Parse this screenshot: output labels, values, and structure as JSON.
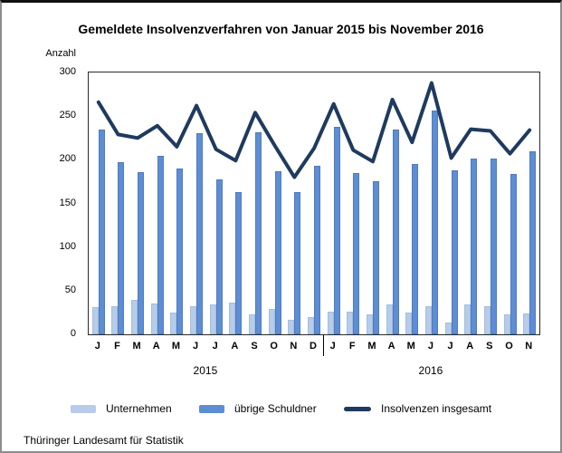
{
  "title": "Gemeldete Insolvenzverfahren von Januar 2015 bis November 2016",
  "y_axis_title": "Anzahl",
  "footer": "Thüringer Landesamt für Statistik",
  "colors": {
    "unternehmen_bar": "#b6cce8",
    "unternehmen_border": "#a5bedd",
    "uebrige_bar": "#5f8dd3",
    "uebrige_border": "#4d7cc0",
    "line": "#1f3a5f",
    "axis": "#2b2b2b"
  },
  "legend": [
    {
      "label": "Unternehmen",
      "swatch": "bar",
      "color": "#b6cce8"
    },
    {
      "label": "übrige Schuldner",
      "swatch": "bar",
      "color": "#5f8dd3"
    },
    {
      "label": "Insolvenzen insgesamt",
      "swatch": "line",
      "color": "#1f3a5f"
    }
  ],
  "chart_data": {
    "type": "bar",
    "subtype": "grouped bars with overlay line",
    "title": "Gemeldete Insolvenzverfahren von Januar 2015 bis November 2016",
    "ylabel": "Anzahl",
    "ylim": [
      0,
      300
    ],
    "yticks": [
      0,
      50,
      100,
      150,
      200,
      250,
      300
    ],
    "grid": false,
    "legend_position": "bottom",
    "categories": [
      "J",
      "F",
      "M",
      "A",
      "M",
      "J",
      "J",
      "A",
      "S",
      "O",
      "N",
      "D",
      "J",
      "F",
      "M",
      "A",
      "M",
      "J",
      "J",
      "A",
      "S",
      "O",
      "N"
    ],
    "year_groups": [
      {
        "label": "2015",
        "start": 0,
        "count": 12
      },
      {
        "label": "2016",
        "start": 12,
        "count": 11
      }
    ],
    "series": [
      {
        "name": "Unternehmen",
        "type": "bar",
        "color": "#b6cce8",
        "values": [
          31,
          32,
          39,
          35,
          25,
          32,
          34,
          36,
          23,
          29,
          17,
          20,
          26,
          26,
          23,
          34,
          25,
          32,
          14,
          34,
          32,
          23,
          24
        ]
      },
      {
        "name": "übrige Schuldner",
        "type": "bar",
        "color": "#5f8dd3",
        "values": [
          235,
          197,
          186,
          204,
          190,
          230,
          178,
          163,
          231,
          187,
          163,
          193,
          238,
          185,
          175,
          235,
          195,
          256,
          188,
          201,
          201,
          184,
          210
        ]
      },
      {
        "name": "Insolvenzen insgesamt",
        "type": "line",
        "color": "#1f3a5f",
        "values": [
          266,
          229,
          225,
          239,
          215,
          262,
          212,
          199,
          254,
          216,
          180,
          213,
          264,
          211,
          198,
          269,
          220,
          288,
          202,
          235,
          233,
          207,
          234
        ]
      }
    ]
  }
}
